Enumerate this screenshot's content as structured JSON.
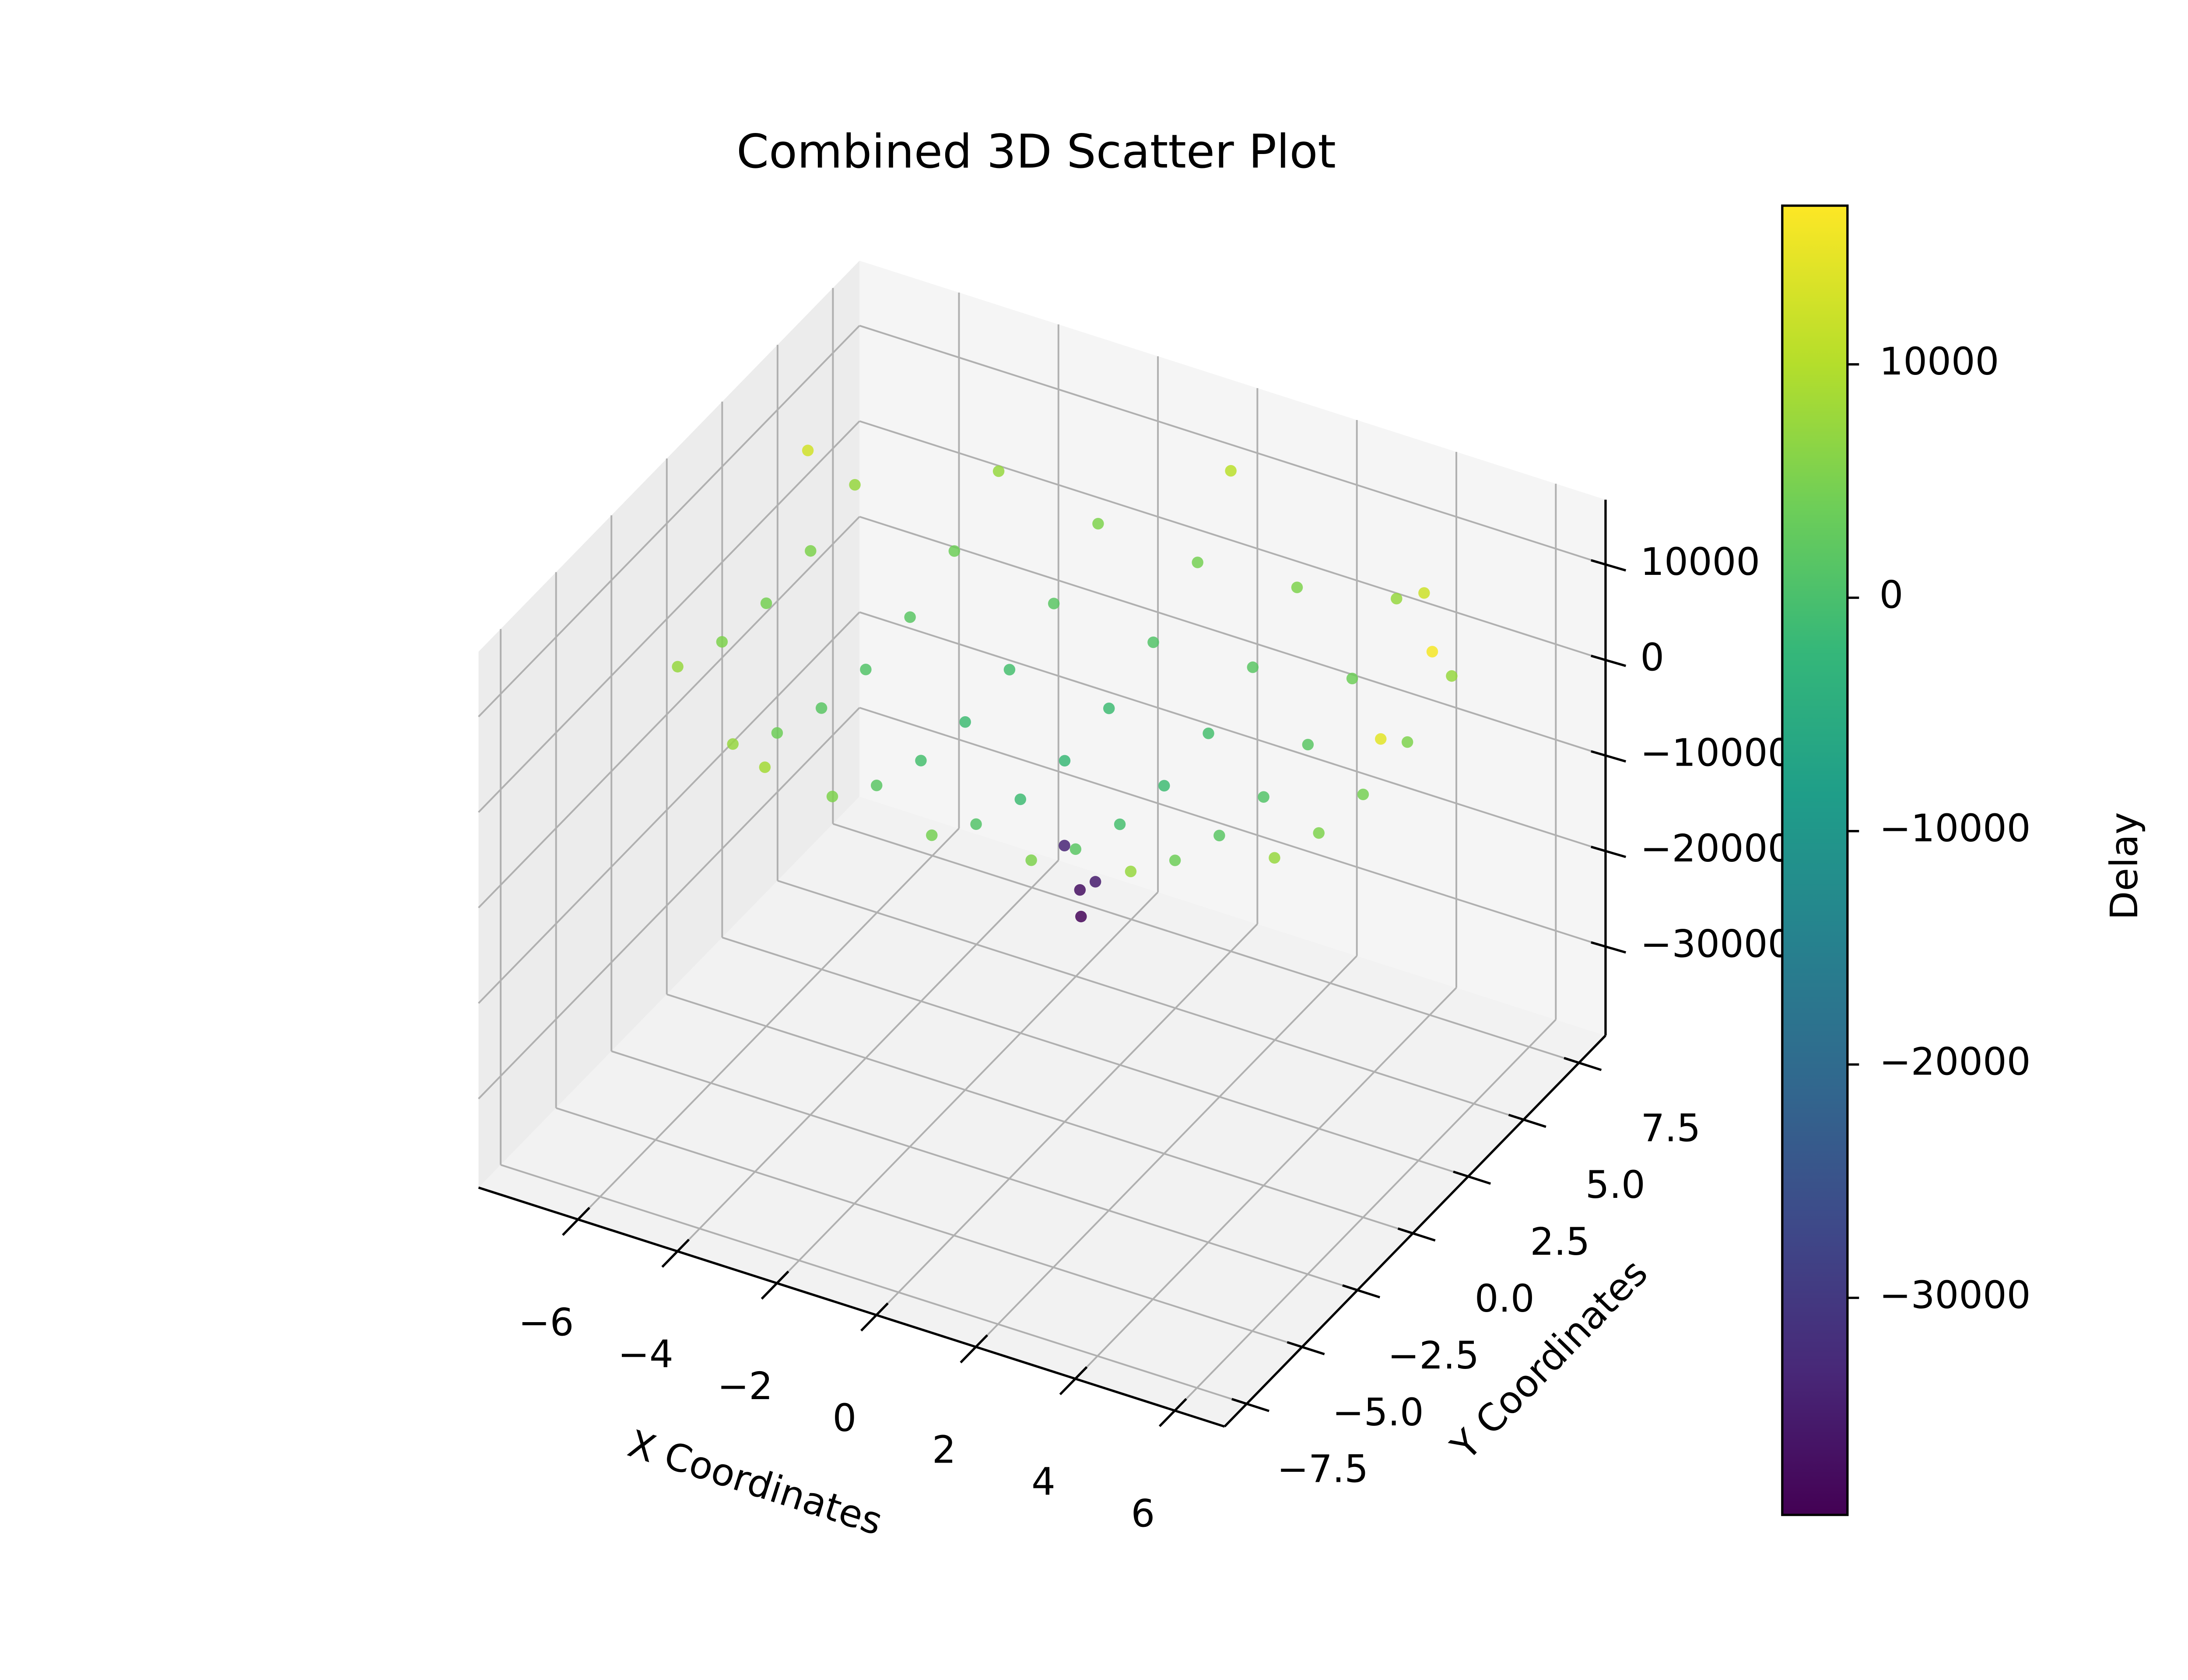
{
  "chart_data": {
    "type": "scatter3d",
    "title": "Combined 3D Scatter Plot",
    "xlabel": "X Coordinates",
    "ylabel": "Y Coordinates",
    "colorbar_label": "Delay",
    "colormap": "viridis",
    "x": [
      -6,
      -6,
      -6,
      -6,
      -6,
      -4,
      -4,
      -4,
      -4,
      -4,
      -4,
      -4,
      -2,
      -2,
      -2,
      -2,
      -2,
      -2,
      -2,
      0,
      0,
      0,
      0,
      0,
      0,
      0,
      2,
      2,
      2,
      2,
      2,
      2,
      2,
      4,
      4,
      4,
      4,
      4,
      4,
      4,
      6,
      6,
      6,
      6,
      6,
      -6.5,
      6.8,
      0,
      -3,
      5,
      6.5,
      -2.9,
      -2.5,
      -3.3,
      -2.7
    ],
    "y": [
      -4,
      -2,
      0,
      2,
      4,
      -6,
      -4,
      -2,
      0,
      2,
      4,
      6,
      -6,
      -4,
      -2,
      0,
      2,
      4,
      6,
      -6,
      -4,
      -2,
      0,
      2,
      4,
      6,
      -6,
      -4,
      -2,
      0,
      2,
      4,
      6,
      -6,
      -4,
      -2,
      0,
      2,
      4,
      6,
      -4,
      -2,
      0,
      2,
      4,
      3,
      -1,
      7.5,
      -6.8,
      5,
      2,
      7.2,
      7,
      7.4,
      6.8
    ],
    "z": [
      7860,
      5700,
      4980,
      5700,
      7860,
      7860,
      4260,
      2100,
      1380,
      2100,
      4260,
      7860,
      5700,
      2100,
      -60,
      -780,
      -60,
      2100,
      5700,
      4980,
      1380,
      -780,
      -1500,
      -780,
      1380,
      4980,
      5700,
      2100,
      -60,
      -780,
      -60,
      2100,
      5700,
      7860,
      4260,
      2100,
      1380,
      2100,
      4260,
      7860,
      7860,
      5700,
      4980,
      5700,
      7860,
      13000,
      14500,
      11000,
      9000,
      12500,
      16000,
      -37000,
      -35000,
      -33500,
      -38500
    ],
    "xlim": [
      -8,
      7
    ],
    "ylim": [
      -8.5,
      8.7
    ],
    "zlim": [
      -39300,
      16800
    ],
    "clim": [
      -39300,
      16800
    ],
    "xticks": [
      {
        "value": -6,
        "label": "−6"
      },
      {
        "value": -4,
        "label": "−4"
      },
      {
        "value": -2,
        "label": "−2"
      },
      0,
      2,
      4,
      6
    ],
    "yticks": [
      {
        "value": -7.5,
        "label": "−7.5"
      },
      {
        "value": -5,
        "label": "−5.0"
      },
      {
        "value": -2.5,
        "label": "−2.5"
      },
      {
        "value": 0,
        "label": "0.0"
      },
      2.5,
      {
        "value": 5,
        "label": "5.0"
      },
      7.5
    ],
    "zticks": [
      {
        "value": -30000,
        "label": "−30000"
      },
      {
        "value": -20000,
        "label": "−20000"
      },
      {
        "value": -10000,
        "label": "−10000"
      },
      0,
      10000
    ],
    "cticks": [
      {
        "value": -30000,
        "label": "−30000"
      },
      {
        "value": -20000,
        "label": "−20000"
      },
      {
        "value": -10000,
        "label": "−10000"
      },
      0,
      10000
    ],
    "grid": true
  }
}
